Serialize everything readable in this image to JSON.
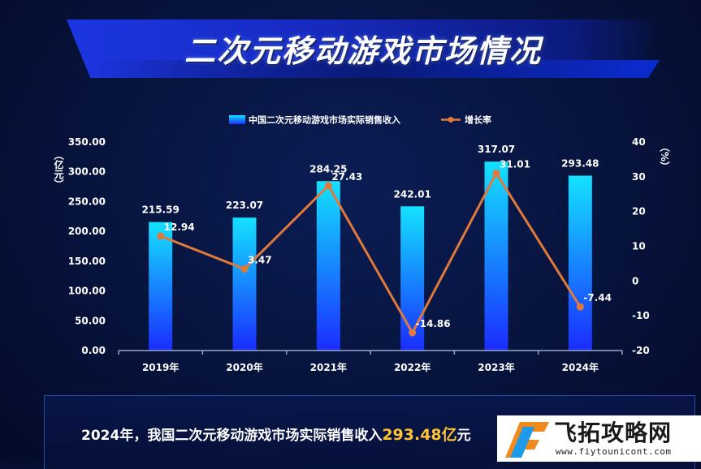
{
  "title": "二次元移动游戏市场情况",
  "footer": {
    "text_before": "2024年，我国二次元移动游戏市场实际销售收入",
    "highlight": "293.48亿",
    "text_after": "元"
  },
  "watermark": {
    "name": "飞拓攻略网",
    "url": "www.fiytounicont.com"
  },
  "colors": {
    "bar_top": "#14e2ff",
    "bar_bottom": "#1a2cff",
    "line": "#e07a3a",
    "highlight": "#ffc233"
  },
  "chart_data": {
    "type": "bar",
    "categories": [
      "2019年",
      "2020年",
      "2021年",
      "2022年",
      "2023年",
      "2024年"
    ],
    "series": [
      {
        "name": "中国二次元移动游戏市场实际销售收入",
        "type": "bar",
        "axis": "left",
        "values": [
          215.59,
          223.07,
          284.25,
          242.01,
          317.07,
          293.48
        ],
        "labels": [
          "215.59",
          "223.07",
          "284.25",
          "242.01",
          "317.07",
          "293.48"
        ]
      },
      {
        "name": "增长率",
        "type": "line",
        "axis": "right",
        "values": [
          12.94,
          3.47,
          27.43,
          -14.86,
          31.01,
          -7.44
        ],
        "labels": [
          "12.94",
          "3.47",
          "27.43",
          "-14.86",
          "31.01",
          "-7.44"
        ]
      }
    ],
    "y_left": {
      "unit_label": "（亿元）",
      "ylim": [
        0,
        350
      ],
      "ticks": [
        "0.00",
        "50.00",
        "100.00",
        "150.00",
        "200.00",
        "250.00",
        "300.00",
        "350.00"
      ]
    },
    "y_right": {
      "unit_label": "（%）",
      "ylim": [
        -20,
        40
      ],
      "ticks": [
        "-20",
        "-10",
        "0",
        "10",
        "20",
        "30",
        "40"
      ]
    },
    "legend_position": "top-center",
    "grid": false
  }
}
